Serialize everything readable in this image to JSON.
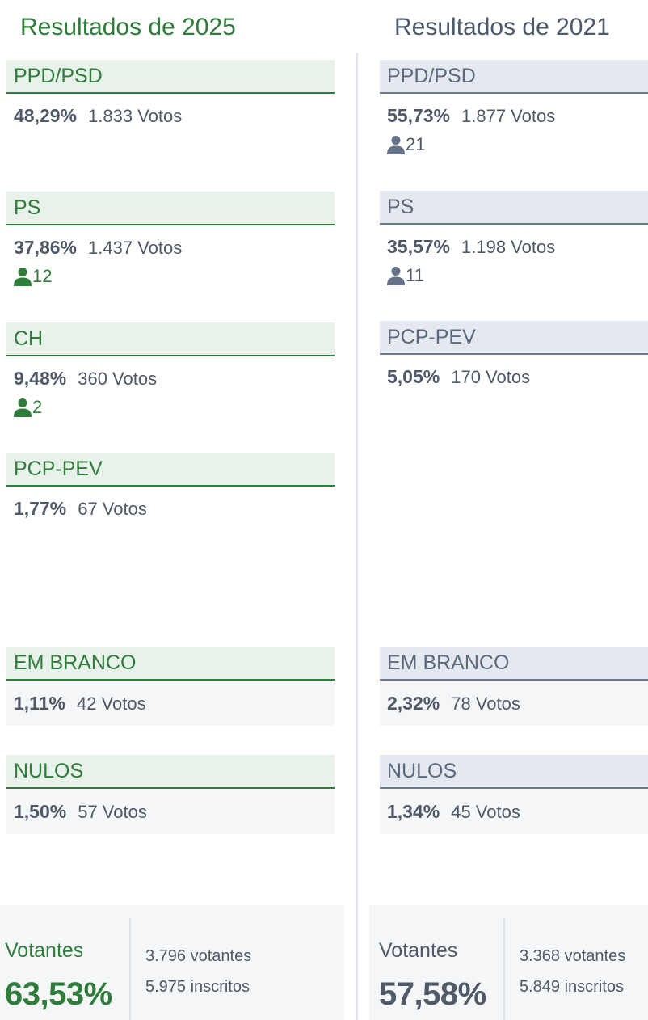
{
  "results_2025": {
    "title": "Resultados de 2025",
    "parties": [
      {
        "name": "PPD/PSD",
        "percent": "48,29%",
        "votes": "1.833 Votos",
        "seats": null
      },
      {
        "name": "PS",
        "percent": "37,86%",
        "votes": "1.437 Votos",
        "seats": "12"
      },
      {
        "name": "CH",
        "percent": "9,48%",
        "votes": "360 Votos",
        "seats": "2"
      },
      {
        "name": "PCP-PEV",
        "percent": "1,77%",
        "votes": "67 Votos",
        "seats": null
      }
    ],
    "blank": {
      "name": "EM BRANCO",
      "percent": "1,11%",
      "votes": "42 Votos"
    },
    "null": {
      "name": "NULOS",
      "percent": "1,50%",
      "votes": "57 Votos"
    },
    "turnout": {
      "label": "Votantes",
      "percent": "63,53%",
      "voters": "3.796 votantes",
      "registered": "5.975 inscritos"
    }
  },
  "results_2021": {
    "title": "Resultados de 2021",
    "parties": [
      {
        "name": "PPD/PSD",
        "percent": "55,73%",
        "votes": "1.877 Votos",
        "seats": "21"
      },
      {
        "name": "PS",
        "percent": "35,57%",
        "votes": "1.198 Votos",
        "seats": "11"
      },
      {
        "name": "PCP-PEV",
        "percent": "5,05%",
        "votes": "170 Votos",
        "seats": null
      }
    ],
    "blank": {
      "name": "EM BRANCO",
      "percent": "2,32%",
      "votes": "78 Votos"
    },
    "null": {
      "name": "NULOS",
      "percent": "1,34%",
      "votes": "45 Votos"
    },
    "turnout": {
      "label": "Votantes",
      "percent": "57,58%",
      "voters": "3.368 votantes",
      "registered": "5.849 inscritos"
    }
  },
  "icons": {
    "seat_icon": "person-icon"
  },
  "colors": {
    "green": "#2e7d3a",
    "slate": "#4f5968",
    "green_bg": "#e9f2ea",
    "slate_bg": "#e4e8ef"
  }
}
